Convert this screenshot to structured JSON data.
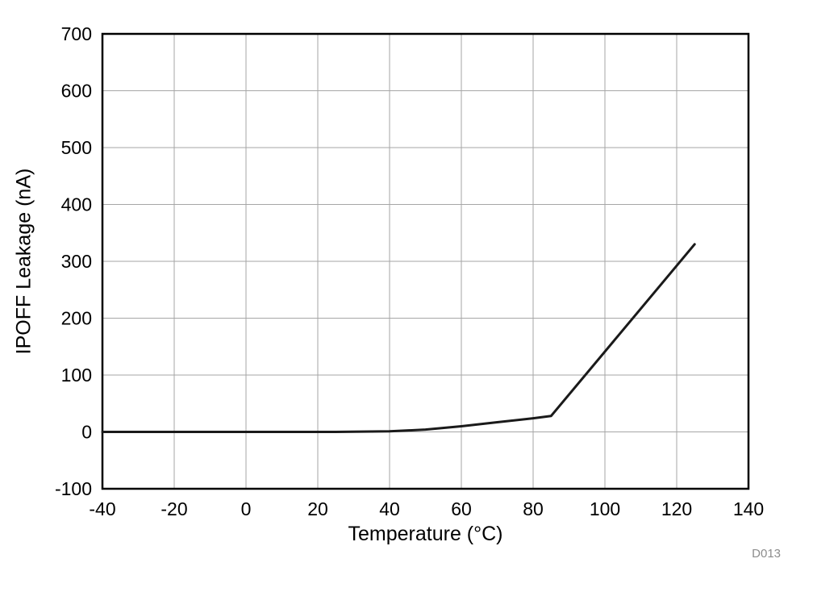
{
  "figure": {
    "watermark": "D013"
  },
  "chart_data": {
    "type": "line",
    "title": "",
    "xlabel": "Temperature (°C)",
    "ylabel": "IPOFF Leakage (nA)",
    "xlim": [
      -40,
      140
    ],
    "ylim": [
      -100,
      700
    ],
    "xticks": [
      -40,
      -20,
      0,
      20,
      40,
      60,
      80,
      100,
      120,
      140
    ],
    "yticks": [
      -100,
      0,
      100,
      200,
      300,
      400,
      500,
      600,
      700
    ],
    "grid": true,
    "legend_position": "none",
    "colors": {
      "line": "#1a1a1a",
      "grid": "#a6a6a6",
      "frame": "#000000",
      "tick_text": "#000000",
      "watermark": "#8c8c8c",
      "background": "#ffffff"
    },
    "series": [
      {
        "name": "IPOFF Leakage",
        "x": [
          -40,
          -20,
          0,
          20,
          25,
          40,
          50,
          60,
          70,
          80,
          85,
          125
        ],
        "y": [
          0,
          0,
          0,
          0,
          0,
          1,
          4,
          10,
          17,
          24,
          28,
          330
        ]
      }
    ]
  }
}
